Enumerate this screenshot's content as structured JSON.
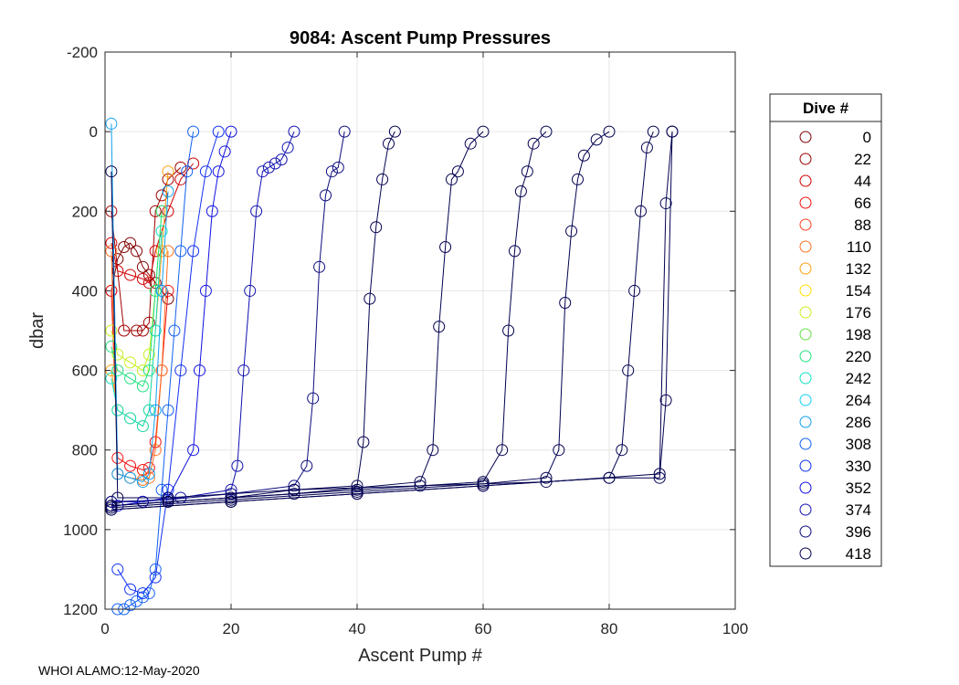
{
  "chart_data": {
    "type": "scatter",
    "title": "9084: Ascent Pump Pressures",
    "xlabel": "Ascent Pump #",
    "ylabel": "dbar",
    "xlim": [
      0,
      100
    ],
    "ylim": [
      -200,
      1200
    ],
    "y_reversed": true,
    "xticks": [
      0,
      20,
      40,
      60,
      80,
      100
    ],
    "yticks": [
      -200,
      0,
      200,
      400,
      600,
      800,
      1000,
      1200
    ],
    "grid": true,
    "marker": "open-circle",
    "legend": {
      "title": "Dive #",
      "placement": "outside-right",
      "entries": [
        {
          "label": "0",
          "color": "#800000"
        },
        {
          "label": "22",
          "color": "#a00000"
        },
        {
          "label": "44",
          "color": "#d00000"
        },
        {
          "label": "66",
          "color": "#f01010"
        },
        {
          "label": "88",
          "color": "#ff4020"
        },
        {
          "label": "110",
          "color": "#ff7020"
        },
        {
          "label": "132",
          "color": "#ffa010"
        },
        {
          "label": "154",
          "color": "#ffe000"
        },
        {
          "label": "176",
          "color": "#c8f020"
        },
        {
          "label": "198",
          "color": "#60e040"
        },
        {
          "label": "220",
          "color": "#20e080"
        },
        {
          "label": "242",
          "color": "#10e0c0"
        },
        {
          "label": "264",
          "color": "#10d0f0"
        },
        {
          "label": "286",
          "color": "#10a0f0"
        },
        {
          "label": "308",
          "color": "#1060f0"
        },
        {
          "label": "330",
          "color": "#1030f0"
        },
        {
          "label": "352",
          "color": "#1010e0"
        },
        {
          "label": "374",
          "color": "#1010b0"
        },
        {
          "label": "396",
          "color": "#0c0c80"
        },
        {
          "label": "418",
          "color": "#000050"
        }
      ]
    },
    "series": [
      {
        "color": "#800000",
        "x": [
          1,
          2,
          3,
          4,
          5,
          6,
          7,
          8,
          9,
          10
        ],
        "y": [
          400,
          320,
          290,
          280,
          300,
          340,
          360,
          380,
          400,
          420
        ]
      },
      {
        "color": "#a00000",
        "x": [
          1,
          3,
          5,
          6,
          7,
          8,
          9,
          10,
          12
        ],
        "y": [
          200,
          500,
          500,
          500,
          480,
          200,
          160,
          120,
          90
        ]
      },
      {
        "color": "#d00000",
        "x": [
          1,
          2,
          4,
          6,
          7,
          8,
          10,
          12,
          14
        ],
        "y": [
          280,
          350,
          360,
          370,
          380,
          300,
          200,
          120,
          80
        ]
      },
      {
        "color": "#f01010",
        "x": [
          1,
          2,
          4,
          6,
          7,
          8,
          9,
          10
        ],
        "y": [
          400,
          820,
          840,
          850,
          845,
          780,
          600,
          400
        ]
      },
      {
        "color": "#ff7020",
        "x": [
          1,
          2,
          4,
          6,
          7,
          8,
          9,
          10
        ],
        "y": [
          300,
          860,
          870,
          875,
          870,
          800,
          600,
          300
        ]
      },
      {
        "color": "#ffa010",
        "x": [
          1,
          2,
          4,
          6,
          7,
          8,
          9,
          10
        ],
        "y": [
          600,
          700,
          720,
          740,
          700,
          500,
          300,
          100
        ]
      },
      {
        "color": "#c8f020",
        "x": [
          1,
          2,
          4,
          6,
          7,
          8,
          9
        ],
        "y": [
          500,
          560,
          580,
          600,
          560,
          400,
          200
        ]
      },
      {
        "color": "#20e080",
        "x": [
          1,
          2,
          4,
          6,
          7,
          8,
          9
        ],
        "y": [
          540,
          600,
          620,
          640,
          600,
          400,
          200
        ]
      },
      {
        "color": "#10e0c0",
        "x": [
          1,
          2,
          4,
          6,
          7,
          8,
          9
        ],
        "y": [
          620,
          700,
          720,
          740,
          700,
          500,
          250
        ]
      },
      {
        "color": "#10a0f0",
        "x": [
          1,
          2,
          4,
          6,
          7,
          8,
          9,
          10
        ],
        "y": [
          -20,
          860,
          870,
          880,
          860,
          700,
          400,
          150
        ]
      },
      {
        "color": "#1060f0",
        "x": [
          2,
          3,
          4,
          5,
          6,
          7,
          8,
          9,
          10,
          11,
          12,
          13,
          14
        ],
        "y": [
          1200,
          1200,
          1190,
          1180,
          1170,
          1160,
          1100,
          900,
          700,
          500,
          300,
          100,
          0
        ]
      },
      {
        "color": "#1030f0",
        "x": [
          2,
          4,
          6,
          8,
          10,
          12,
          14,
          16,
          18
        ],
        "y": [
          1100,
          1150,
          1160,
          1120,
          900,
          600,
          300,
          100,
          0
        ]
      },
      {
        "color": "#1010e0",
        "x": [
          2,
          6,
          10,
          14,
          15,
          16,
          17,
          18,
          19,
          20
        ],
        "y": [
          940,
          930,
          920,
          800,
          600,
          400,
          200,
          100,
          50,
          0
        ]
      },
      {
        "color": "#1010b0",
        "x": [
          1,
          6,
          12,
          20,
          21,
          22,
          23,
          24,
          25,
          26,
          27,
          28,
          29,
          30
        ],
        "y": [
          930,
          930,
          920,
          900,
          840,
          600,
          400,
          200,
          100,
          90,
          80,
          70,
          40,
          0
        ]
      },
      {
        "color": "#0c0c80",
        "x": [
          1,
          10,
          20,
          30,
          32,
          33,
          34,
          35,
          36,
          37,
          38
        ],
        "y": [
          930,
          925,
          910,
          890,
          840,
          670,
          340,
          160,
          100,
          90,
          0
        ]
      },
      {
        "color": "#000050",
        "x": [
          1,
          10,
          20,
          30,
          40,
          41,
          42,
          43,
          44,
          45,
          46
        ],
        "y": [
          940,
          930,
          920,
          900,
          890,
          780,
          420,
          240,
          120,
          30,
          0
        ]
      },
      {
        "color": "#000050",
        "x": [
          1,
          10,
          30,
          50,
          52,
          53,
          54,
          55,
          56,
          58,
          60
        ],
        "y": [
          940,
          930,
          910,
          880,
          800,
          490,
          290,
          120,
          100,
          30,
          0
        ]
      },
      {
        "color": "#000050",
        "x": [
          1,
          20,
          40,
          60,
          63,
          64,
          65,
          66,
          67,
          68,
          70
        ],
        "y": [
          940,
          920,
          900,
          880,
          800,
          500,
          300,
          150,
          100,
          30,
          0
        ]
      },
      {
        "color": "#000050",
        "x": [
          1,
          20,
          40,
          60,
          70,
          72,
          73,
          74,
          75,
          76,
          78,
          80
        ],
        "y": [
          945,
          925,
          905,
          885,
          870,
          800,
          430,
          250,
          120,
          60,
          20,
          0
        ]
      },
      {
        "color": "#000050",
        "x": [
          1,
          20,
          40,
          60,
          80,
          82,
          83,
          84,
          85,
          86,
          87
        ],
        "y": [
          950,
          930,
          910,
          890,
          870,
          800,
          600,
          400,
          200,
          40,
          0
        ]
      },
      {
        "color": "#000050",
        "x": [
          1,
          20,
          40,
          60,
          80,
          88,
          89,
          90
        ],
        "y": [
          950,
          930,
          910,
          890,
          870,
          870,
          675,
          0
        ]
      },
      {
        "color": "#000050",
        "x": [
          1,
          2,
          10,
          30,
          50,
          70,
          88,
          89,
          90
        ],
        "y": [
          100,
          920,
          920,
          900,
          890,
          880,
          860,
          180,
          0
        ]
      }
    ]
  },
  "footer": {
    "text": "WHOI ALAMO:12-May-2020"
  }
}
